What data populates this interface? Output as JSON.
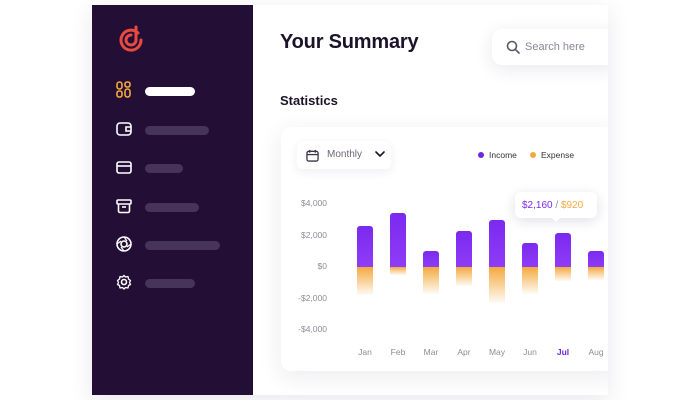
{
  "app": {
    "title": "Your Summary"
  },
  "colors": {
    "sidebar_bg": "#230f35",
    "accent_purple": "#6b26e8",
    "accent_orange": "#f3a93d",
    "logo_red": "#e84a3f"
  },
  "sidebar": {
    "logo_icon": "logo-icon",
    "items": [
      {
        "icon": "grid-icon",
        "active": true
      },
      {
        "icon": "wallet-icon",
        "active": false
      },
      {
        "icon": "card-icon",
        "active": false
      },
      {
        "icon": "archive-icon",
        "active": false
      },
      {
        "icon": "aperture-icon",
        "active": false
      },
      {
        "icon": "gear-icon",
        "active": false
      }
    ]
  },
  "search": {
    "placeholder": "Search here",
    "icon": "search-icon"
  },
  "statistics": {
    "section_title": "Statistics",
    "period_select": {
      "selected": "Monthly",
      "icon": "calendar-icon"
    },
    "legend": {
      "income_label": "Income",
      "expense_label": "Expense"
    },
    "tooltip": {
      "income": "$2,160",
      "separator": " / ",
      "expense": "$920"
    }
  },
  "chart_data": {
    "type": "bar",
    "categories": [
      "Jan",
      "Feb",
      "Mar",
      "Apr",
      "May",
      "Jun",
      "Jul",
      "Aug"
    ],
    "highlighted_category": "Jul",
    "series": [
      {
        "name": "Income",
        "values": [
          2600,
          3400,
          1000,
          2300,
          3000,
          1500,
          2160,
          1000
        ]
      },
      {
        "name": "Expense",
        "values": [
          -1800,
          -500,
          -1700,
          -1200,
          -2300,
          -1700,
          -920,
          -800
        ]
      }
    ],
    "yticks": [
      "$4,000",
      "$2,000",
      "$0",
      "-$2,000",
      "-$4,000"
    ],
    "ylim": [
      -4000,
      4000
    ],
    "grid": false,
    "legend_position": "top-right"
  }
}
